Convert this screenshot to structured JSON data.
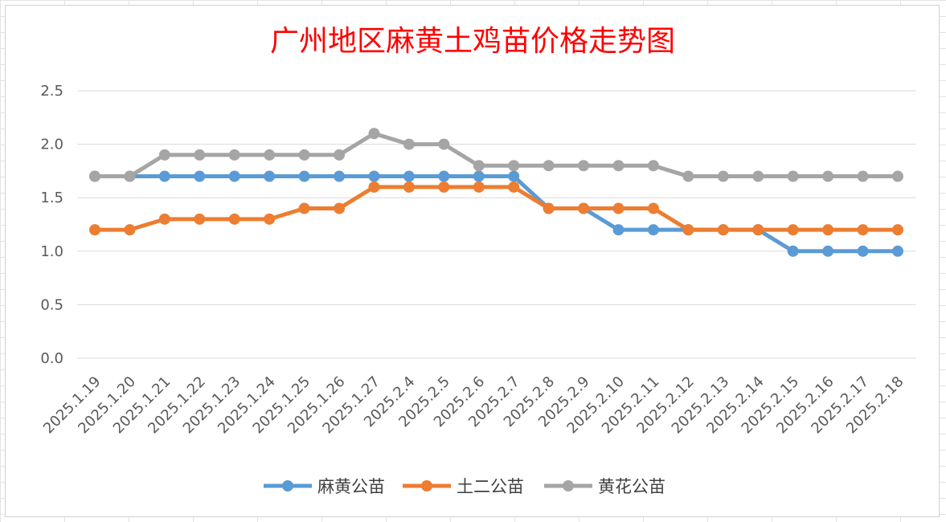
{
  "colors": {
    "title": "#ff0000",
    "grid": "#d9d9d9",
    "axis_text": "#595959"
  },
  "chart_data": {
    "type": "line",
    "title": "广州地区麻黄土鸡苗价格走势图",
    "xlabel": "",
    "ylabel": "",
    "ylim": [
      0,
      2.5
    ],
    "yticks": [
      "0.0",
      "0.5",
      "1.0",
      "1.5",
      "2.0",
      "2.5"
    ],
    "grid": true,
    "legend_position": "bottom",
    "categories": [
      "2025.1.19",
      "2025.1.20",
      "2025.1.21",
      "2025.1.22",
      "2025.1.23",
      "2025.1.24",
      "2025.1.25",
      "2025.1.26",
      "2025.1.27",
      "2025.2.4",
      "2025.2.5",
      "2025.2.6",
      "2025.2.7",
      "2025.2.8",
      "2025.2.9",
      "2025.2.10",
      "2025.2.11",
      "2025.2.12",
      "2025.2.13",
      "2025.2.14",
      "2025.2.15",
      "2025.2.16",
      "2025.2.17",
      "2025.2.18"
    ],
    "series": [
      {
        "name": "麻黄公苗",
        "color": "#5b9bd5",
        "values": [
          1.7,
          1.7,
          1.7,
          1.7,
          1.7,
          1.7,
          1.7,
          1.7,
          1.7,
          1.7,
          1.7,
          1.7,
          1.7,
          1.4,
          1.4,
          1.2,
          1.2,
          1.2,
          1.2,
          1.2,
          1.0,
          1.0,
          1.0,
          1.0
        ]
      },
      {
        "name": "土二公苗",
        "color": "#ed7d31",
        "values": [
          1.2,
          1.2,
          1.3,
          1.3,
          1.3,
          1.3,
          1.4,
          1.4,
          1.6,
          1.6,
          1.6,
          1.6,
          1.6,
          1.4,
          1.4,
          1.4,
          1.4,
          1.2,
          1.2,
          1.2,
          1.2,
          1.2,
          1.2,
          1.2
        ]
      },
      {
        "name": "黄花公苗",
        "color": "#a5a5a5",
        "values": [
          1.7,
          1.7,
          1.9,
          1.9,
          1.9,
          1.9,
          1.9,
          1.9,
          2.1,
          2.0,
          2.0,
          1.8,
          1.8,
          1.8,
          1.8,
          1.8,
          1.8,
          1.7,
          1.7,
          1.7,
          1.7,
          1.7,
          1.7,
          1.7
        ]
      }
    ]
  }
}
